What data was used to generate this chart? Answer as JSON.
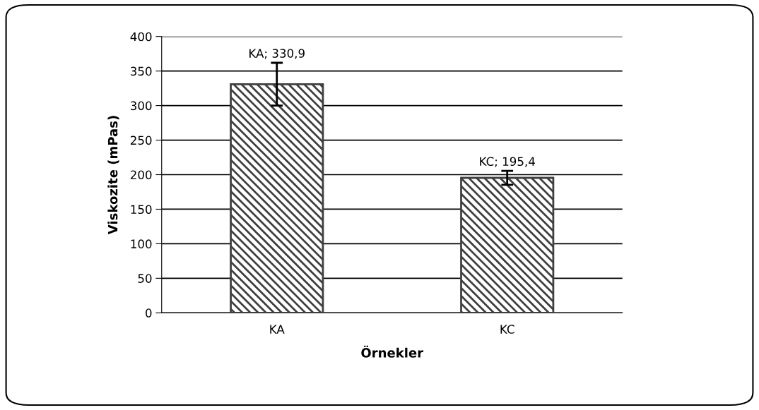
{
  "chart_data": {
    "type": "bar",
    "xlabel": "Örnekler",
    "ylabel": "Viskozite (mPas)",
    "categories": [
      "KA",
      "KC"
    ],
    "values": [
      330.9,
      195.4
    ],
    "errors": [
      31,
      10
    ],
    "value_labels": [
      "KA; 330,9",
      "KC; 195,4"
    ],
    "color": "#404040",
    "ylim": [
      0,
      400
    ],
    "yticks": [
      0,
      50,
      100,
      150,
      200,
      250,
      300,
      350,
      400
    ],
    "grid": "y",
    "legend": false
  }
}
